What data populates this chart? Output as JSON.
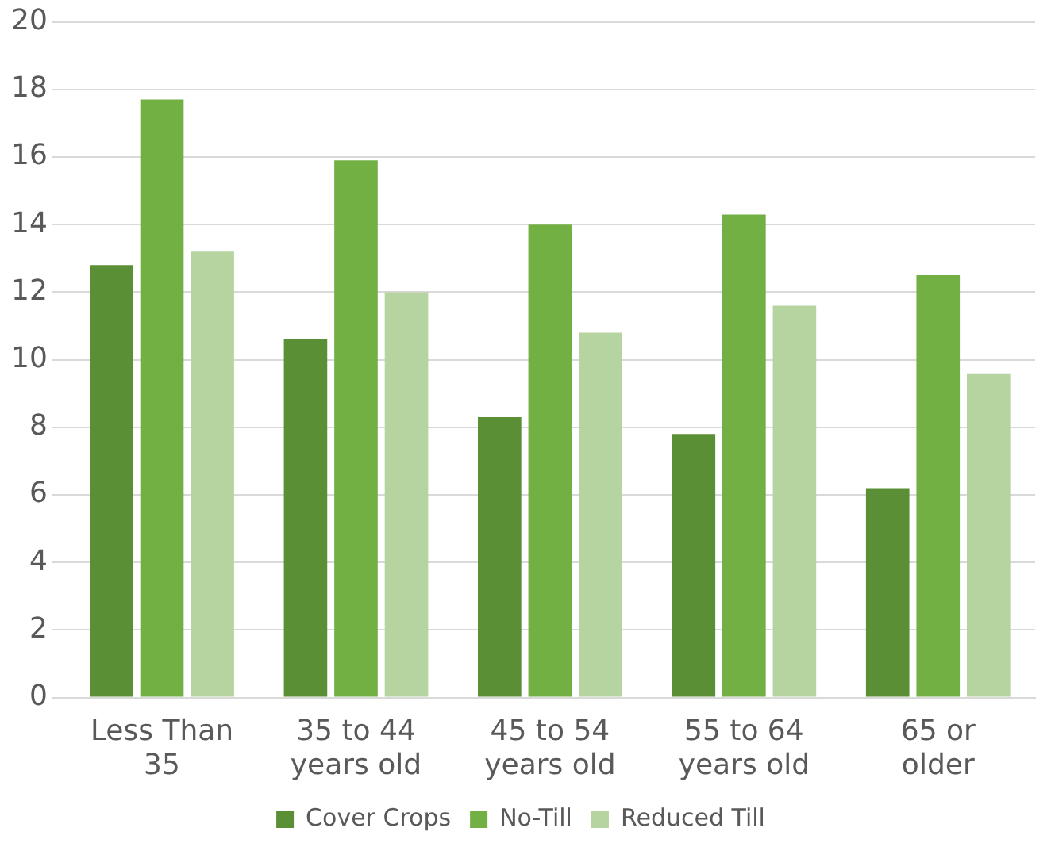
{
  "chart_data": {
    "type": "bar",
    "categories": [
      "Less Than 35",
      "35 to 44 years old",
      "45 to 54 years old",
      "55 to 64 years old",
      "65 or older"
    ],
    "series": [
      {
        "name": "Cover Crops",
        "color": "#5a8f35",
        "values": [
          12.8,
          10.6,
          8.3,
          7.8,
          6.2
        ]
      },
      {
        "name": "No-Till",
        "color": "#72b043",
        "values": [
          17.7,
          15.9,
          14.0,
          14.3,
          12.5
        ]
      },
      {
        "name": "Reduced Till",
        "color": "#b5d4a0",
        "values": [
          13.2,
          12.0,
          10.8,
          11.6,
          9.6
        ]
      }
    ],
    "ylim": [
      0,
      20
    ],
    "yticks": [
      0,
      2,
      4,
      6,
      8,
      10,
      12,
      14,
      16,
      18,
      20
    ],
    "grid": "y",
    "legend": "bottom"
  }
}
